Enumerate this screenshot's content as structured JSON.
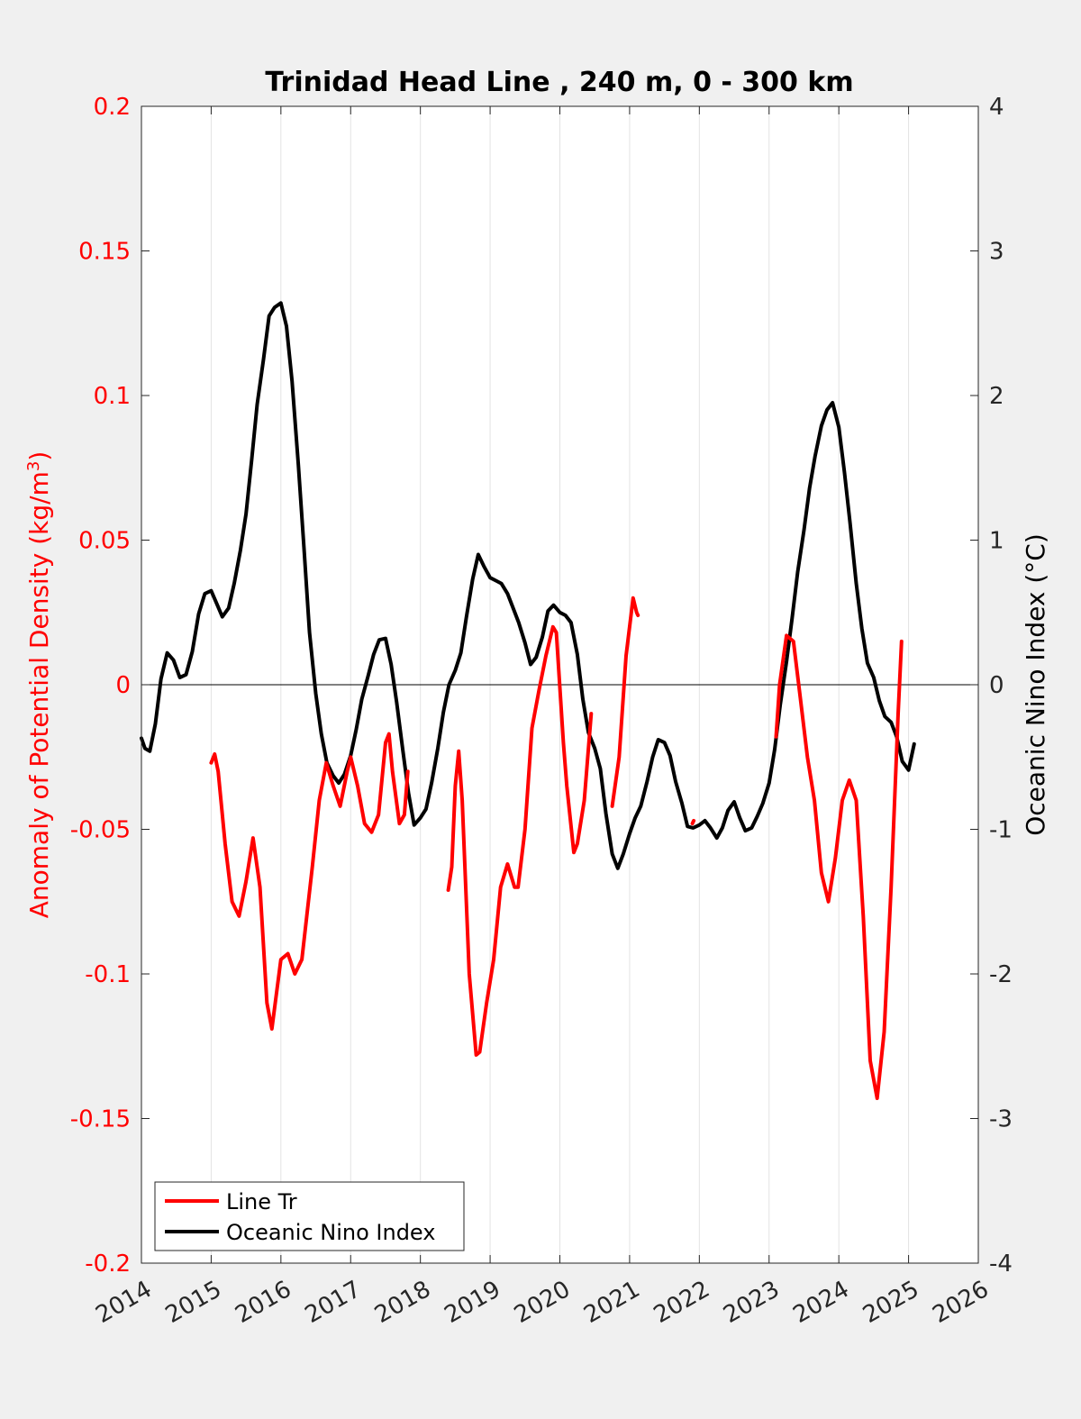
{
  "chart_data": {
    "type": "line",
    "title": "Trinidad Head Line , 240 m, 0 - 300 km",
    "xlim": [
      2014,
      2026
    ],
    "x_ticks": [
      "2014",
      "2015",
      "2016",
      "2017",
      "2018",
      "2019",
      "2020",
      "2021",
      "2022",
      "2023",
      "2024",
      "2025",
      "2026"
    ],
    "x_tick_values": [
      2014,
      2015,
      2016,
      2017,
      2018,
      2019,
      2020,
      2021,
      2022,
      2023,
      2024,
      2025,
      2026
    ],
    "ylabel_left": "Anomaly of Potential Density (kg/m",
    "ylabel_left_superscript": "3",
    "ylabel_left_suffix": ")",
    "ylim_left": [
      -0.2,
      0.2
    ],
    "y_ticks_left": [
      "0.2",
      "0.15",
      "0.1",
      "0.05",
      "0",
      "-0.05",
      "-0.1",
      "-0.15",
      "-0.2"
    ],
    "y_tick_values_left": [
      0.2,
      0.15,
      0.1,
      0.05,
      0,
      -0.05,
      -0.1,
      -0.15,
      -0.2
    ],
    "ylabel_right": "Oceanic Nino Index (°C)",
    "ylim_right": [
      -4,
      4
    ],
    "y_ticks_right": [
      "4",
      "3",
      "2",
      "1",
      "0",
      "-1",
      "-2",
      "-3",
      "-4"
    ],
    "y_tick_values_right": [
      4,
      3,
      2,
      1,
      0,
      -1,
      -2,
      -3,
      -4
    ],
    "grid": "vertical",
    "legend_position": "bottom-left",
    "series": [
      {
        "name": "Line Tr",
        "axis": "left",
        "color": "#ff0000",
        "segments": [
          [
            [
              2015.0,
              -0.027
            ],
            [
              2015.05,
              -0.024
            ],
            [
              2015.1,
              -0.03
            ],
            [
              2015.2,
              -0.055
            ],
            [
              2015.3,
              -0.075
            ],
            [
              2015.4,
              -0.08
            ],
            [
              2015.5,
              -0.068
            ],
            [
              2015.6,
              -0.053
            ],
            [
              2015.7,
              -0.07
            ],
            [
              2015.8,
              -0.11
            ],
            [
              2015.87,
              -0.119
            ],
            [
              2016.0,
              -0.095
            ],
            [
              2016.1,
              -0.093
            ],
            [
              2016.2,
              -0.1
            ],
            [
              2016.3,
              -0.095
            ],
            [
              2016.45,
              -0.063
            ],
            [
              2016.55,
              -0.04
            ],
            [
              2016.65,
              -0.027
            ],
            [
              2016.75,
              -0.035
            ],
            [
              2016.85,
              -0.042
            ],
            [
              2016.95,
              -0.03
            ],
            [
              2017.0,
              -0.025
            ],
            [
              2017.1,
              -0.035
            ],
            [
              2017.2,
              -0.048
            ],
            [
              2017.3,
              -0.051
            ],
            [
              2017.4,
              -0.045
            ],
            [
              2017.5,
              -0.02
            ],
            [
              2017.55,
              -0.017
            ],
            [
              2017.6,
              -0.03
            ],
            [
              2017.7,
              -0.048
            ],
            [
              2017.77,
              -0.045
            ],
            [
              2017.82,
              -0.03
            ]
          ],
          [
            [
              2018.4,
              -0.071
            ],
            [
              2018.45,
              -0.063
            ],
            [
              2018.5,
              -0.035
            ],
            [
              2018.55,
              -0.023
            ],
            [
              2018.6,
              -0.04
            ],
            [
              2018.7,
              -0.1
            ],
            [
              2018.8,
              -0.128
            ],
            [
              2018.85,
              -0.127
            ],
            [
              2018.95,
              -0.11
            ],
            [
              2019.05,
              -0.095
            ],
            [
              2019.15,
              -0.07
            ],
            [
              2019.25,
              -0.062
            ],
            [
              2019.35,
              -0.07
            ],
            [
              2019.4,
              -0.07
            ],
            [
              2019.5,
              -0.05
            ],
            [
              2019.6,
              -0.015
            ],
            [
              2019.7,
              -0.002
            ],
            [
              2019.8,
              0.01
            ],
            [
              2019.9,
              0.02
            ],
            [
              2019.95,
              0.018
            ],
            [
              2020.05,
              -0.02
            ],
            [
              2020.1,
              -0.035
            ],
            [
              2020.2,
              -0.058
            ],
            [
              2020.25,
              -0.055
            ],
            [
              2020.35,
              -0.04
            ],
            [
              2020.45,
              -0.01
            ]
          ],
          [
            [
              2020.75,
              -0.042
            ],
            [
              2020.85,
              -0.025
            ],
            [
              2020.95,
              0.01
            ],
            [
              2021.05,
              0.03
            ],
            [
              2021.1,
              0.025
            ],
            [
              2021.12,
              0.024
            ]
          ],
          [
            [
              2021.9,
              -0.048
            ],
            [
              2021.92,
              -0.047
            ]
          ],
          [
            [
              2023.1,
              -0.018
            ],
            [
              2023.15,
              0.0
            ],
            [
              2023.25,
              0.017
            ],
            [
              2023.35,
              0.015
            ],
            [
              2023.45,
              -0.005
            ],
            [
              2023.55,
              -0.025
            ],
            [
              2023.65,
              -0.04
            ],
            [
              2023.75,
              -0.065
            ],
            [
              2023.85,
              -0.075
            ],
            [
              2023.95,
              -0.06
            ],
            [
              2024.05,
              -0.04
            ],
            [
              2024.15,
              -0.033
            ],
            [
              2024.25,
              -0.04
            ],
            [
              2024.35,
              -0.08
            ],
            [
              2024.45,
              -0.13
            ],
            [
              2024.55,
              -0.143
            ],
            [
              2024.65,
              -0.12
            ],
            [
              2024.75,
              -0.07
            ],
            [
              2024.85,
              -0.01
            ],
            [
              2024.9,
              0.015
            ]
          ]
        ]
      },
      {
        "name": "Oceanic Nino Index",
        "axis": "right",
        "color": "#000000",
        "segments": [
          [
            [
              2014.0,
              -0.37
            ],
            [
              2014.05,
              -0.44
            ],
            [
              2014.12,
              -0.46
            ],
            [
              2014.2,
              -0.27
            ],
            [
              2014.28,
              0.04
            ],
            [
              2014.37,
              0.22
            ],
            [
              2014.46,
              0.17
            ],
            [
              2014.55,
              0.05
            ],
            [
              2014.64,
              0.07
            ],
            [
              2014.73,
              0.23
            ],
            [
              2014.82,
              0.49
            ],
            [
              2014.91,
              0.63
            ],
            [
              2015.0,
              0.65
            ],
            [
              2015.08,
              0.56
            ],
            [
              2015.16,
              0.47
            ],
            [
              2015.25,
              0.53
            ],
            [
              2015.33,
              0.7
            ],
            [
              2015.42,
              0.93
            ],
            [
              2015.5,
              1.18
            ],
            [
              2015.58,
              1.55
            ],
            [
              2015.66,
              1.94
            ],
            [
              2015.75,
              2.25
            ],
            [
              2015.83,
              2.55
            ],
            [
              2015.91,
              2.61
            ],
            [
              2016.0,
              2.64
            ],
            [
              2016.08,
              2.48
            ],
            [
              2016.16,
              2.1
            ],
            [
              2016.25,
              1.52
            ],
            [
              2016.33,
              0.95
            ],
            [
              2016.41,
              0.36
            ],
            [
              2016.5,
              -0.06
            ],
            [
              2016.58,
              -0.34
            ],
            [
              2016.66,
              -0.54
            ],
            [
              2016.75,
              -0.63
            ],
            [
              2016.83,
              -0.68
            ],
            [
              2016.91,
              -0.62
            ],
            [
              2017.0,
              -0.49
            ],
            [
              2017.08,
              -0.31
            ],
            [
              2017.16,
              -0.1
            ],
            [
              2017.25,
              0.06
            ],
            [
              2017.33,
              0.21
            ],
            [
              2017.41,
              0.31
            ],
            [
              2017.5,
              0.32
            ],
            [
              2017.58,
              0.14
            ],
            [
              2017.66,
              -0.12
            ],
            [
              2017.75,
              -0.46
            ],
            [
              2017.83,
              -0.75
            ],
            [
              2017.91,
              -0.97
            ],
            [
              2018.0,
              -0.92
            ],
            [
              2018.08,
              -0.86
            ],
            [
              2018.16,
              -0.68
            ],
            [
              2018.25,
              -0.44
            ],
            [
              2018.33,
              -0.19
            ],
            [
              2018.41,
              0.0
            ],
            [
              2018.5,
              0.1
            ],
            [
              2018.58,
              0.22
            ],
            [
              2018.66,
              0.47
            ],
            [
              2018.75,
              0.73
            ],
            [
              2018.83,
              0.9
            ],
            [
              2018.91,
              0.82
            ],
            [
              2019.0,
              0.74
            ],
            [
              2019.08,
              0.72
            ],
            [
              2019.16,
              0.7
            ],
            [
              2019.25,
              0.63
            ],
            [
              2019.33,
              0.53
            ],
            [
              2019.41,
              0.43
            ],
            [
              2019.5,
              0.29
            ],
            [
              2019.58,
              0.14
            ],
            [
              2019.66,
              0.19
            ],
            [
              2019.75,
              0.33
            ],
            [
              2019.83,
              0.51
            ],
            [
              2019.91,
              0.55
            ],
            [
              2020.0,
              0.5
            ],
            [
              2020.08,
              0.48
            ],
            [
              2020.16,
              0.43
            ],
            [
              2020.25,
              0.21
            ],
            [
              2020.33,
              -0.1
            ],
            [
              2020.41,
              -0.33
            ],
            [
              2020.5,
              -0.44
            ],
            [
              2020.58,
              -0.58
            ],
            [
              2020.66,
              -0.89
            ],
            [
              2020.75,
              -1.17
            ],
            [
              2020.83,
              -1.27
            ],
            [
              2020.91,
              -1.17
            ],
            [
              2021.0,
              -1.03
            ],
            [
              2021.08,
              -0.92
            ],
            [
              2021.16,
              -0.84
            ],
            [
              2021.25,
              -0.67
            ],
            [
              2021.33,
              -0.5
            ],
            [
              2021.41,
              -0.38
            ],
            [
              2021.5,
              -0.4
            ],
            [
              2021.58,
              -0.49
            ],
            [
              2021.66,
              -0.67
            ],
            [
              2021.75,
              -0.82
            ],
            [
              2021.83,
              -0.98
            ],
            [
              2021.91,
              -0.99
            ],
            [
              2022.0,
              -0.97
            ],
            [
              2022.08,
              -0.94
            ],
            [
              2022.16,
              -0.99
            ],
            [
              2022.25,
              -1.06
            ],
            [
              2022.33,
              -0.99
            ],
            [
              2022.41,
              -0.87
            ],
            [
              2022.5,
              -0.81
            ],
            [
              2022.58,
              -0.92
            ],
            [
              2022.66,
              -1.01
            ],
            [
              2022.75,
              -0.99
            ],
            [
              2022.83,
              -0.91
            ],
            [
              2022.91,
              -0.82
            ],
            [
              2023.0,
              -0.68
            ],
            [
              2023.08,
              -0.45
            ],
            [
              2023.16,
              -0.14
            ],
            [
              2023.25,
              0.16
            ],
            [
              2023.33,
              0.46
            ],
            [
              2023.41,
              0.78
            ],
            [
              2023.5,
              1.07
            ],
            [
              2023.58,
              1.36
            ],
            [
              2023.66,
              1.58
            ],
            [
              2023.75,
              1.79
            ],
            [
              2023.83,
              1.9
            ],
            [
              2023.91,
              1.95
            ],
            [
              2024.0,
              1.78
            ],
            [
              2024.08,
              1.47
            ],
            [
              2024.16,
              1.12
            ],
            [
              2024.25,
              0.7
            ],
            [
              2024.33,
              0.39
            ],
            [
              2024.41,
              0.15
            ],
            [
              2024.5,
              0.05
            ],
            [
              2024.58,
              -0.11
            ],
            [
              2024.66,
              -0.22
            ],
            [
              2024.75,
              -0.26
            ],
            [
              2024.83,
              -0.36
            ],
            [
              2024.91,
              -0.53
            ],
            [
              2025.0,
              -0.59
            ],
            [
              2025.08,
              -0.41
            ]
          ]
        ]
      }
    ]
  },
  "legend": {
    "items": [
      {
        "label": "Line Tr",
        "color": "#ff0000"
      },
      {
        "label": "Oceanic Nino Index",
        "color": "#000000"
      }
    ]
  }
}
